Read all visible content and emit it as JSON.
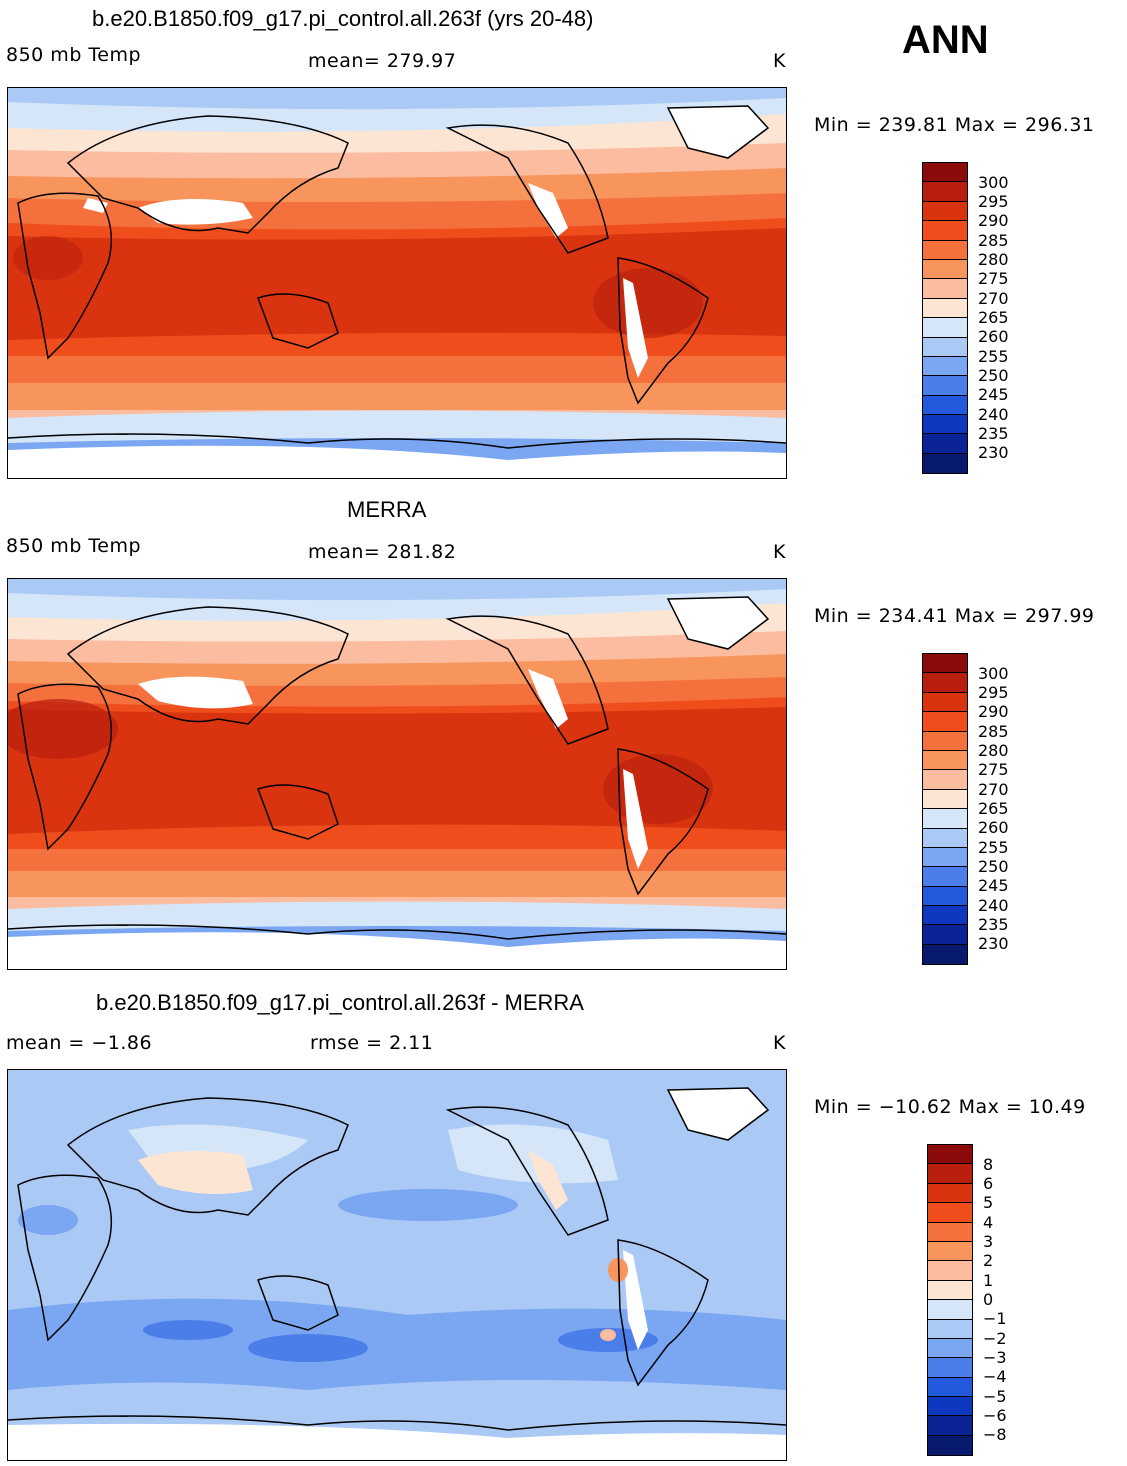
{
  "season": "ANN",
  "panels": [
    {
      "id": "model",
      "title": "b.e20.B1850.f09_g17.pi_control.all.263f (yrs 20-48)",
      "left_label": "850 mb Temp",
      "center_label": "mean= 279.97",
      "units": "K",
      "minmax": "Min = 239.81 Max = 296.31",
      "colorbar_labels": [
        "300",
        "295",
        "290",
        "285",
        "280",
        "275",
        "270",
        "265",
        "260",
        "255",
        "250",
        "245",
        "240",
        "235",
        "230"
      ],
      "colorbar_colors": [
        "#8b0a0a",
        "#b81e0e",
        "#d9340f",
        "#ef4e1c",
        "#f4713d",
        "#f8955d",
        "#fbbca0",
        "#fde5d4",
        "#d4e6f8",
        "#aac9f5",
        "#7aa6f2",
        "#4b7ee9",
        "#2359dd",
        "#0d38bf",
        "#0a2496",
        "#071a6e"
      ]
    },
    {
      "id": "obs",
      "title": "MERRA",
      "left_label": "850 mb Temp",
      "center_label": "mean= 281.82",
      "units": "K",
      "minmax": "Min = 234.41 Max = 297.99",
      "colorbar_labels": [
        "300",
        "295",
        "290",
        "285",
        "280",
        "275",
        "270",
        "265",
        "260",
        "255",
        "250",
        "245",
        "240",
        "235",
        "230"
      ],
      "colorbar_colors": [
        "#8b0a0a",
        "#b81e0e",
        "#d9340f",
        "#ef4e1c",
        "#f4713d",
        "#f8955d",
        "#fbbca0",
        "#fde5d4",
        "#d4e6f8",
        "#aac9f5",
        "#7aa6f2",
        "#4b7ee9",
        "#2359dd",
        "#0d38bf",
        "#0a2496",
        "#071a6e"
      ]
    },
    {
      "id": "diff",
      "title": "b.e20.B1850.f09_g17.pi_control.all.263f - MERRA",
      "left_label": "mean =   −1.86",
      "center_label": "rmse =    2.11",
      "units": "K",
      "minmax": "Min = −10.62 Max =  10.49",
      "colorbar_labels": [
        "8",
        "6",
        "5",
        "4",
        "3",
        "2",
        "1",
        "0",
        "−1",
        "−2",
        "−3",
        "−4",
        "−5",
        "−6",
        "−8"
      ],
      "colorbar_colors": [
        "#8b0a0a",
        "#b81e0e",
        "#d9340f",
        "#ef4e1c",
        "#f4713d",
        "#f8955d",
        "#fbbca0",
        "#fde5d4",
        "#d4e6f8",
        "#aac9f5",
        "#7aa6f2",
        "#4b7ee9",
        "#2359dd",
        "#0d38bf",
        "#0a2496",
        "#071a6e"
      ]
    }
  ]
}
